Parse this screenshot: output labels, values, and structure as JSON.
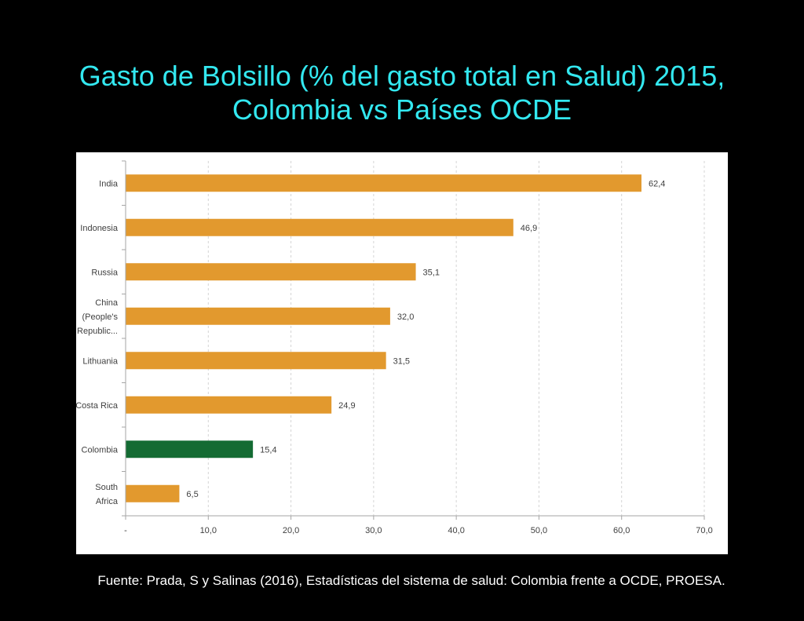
{
  "slide": {
    "background": "#000000",
    "title_color": "#33E8F0",
    "source": "Fuente: Prada, S y Salinas (2016), Estadísticas del sistema de salud: Colombia frente a OCDE, PROESA."
  },
  "chart_data": {
    "type": "bar",
    "orientation": "horizontal",
    "title": [
      "Gasto de Bolsillo (% del gasto total en Salud) 2015,",
      "Colombia vs Países OCDE"
    ],
    "categories": [
      [
        "India"
      ],
      [
        "Indonesia"
      ],
      [
        "Russia"
      ],
      [
        "China",
        "(People's",
        "Republic..."
      ],
      [
        "Lithuania"
      ],
      [
        "Costa Rica"
      ],
      [
        "Colombia"
      ],
      [
        "South",
        "Africa"
      ]
    ],
    "values": [
      62.4,
      46.9,
      35.1,
      32.0,
      31.5,
      24.9,
      15.4,
      6.5
    ],
    "value_labels": [
      "62,4",
      "46,9",
      "35,1",
      "32,0",
      "31,5",
      "24,9",
      "15,4",
      "6,5"
    ],
    "bar_colors": [
      "#E2992E",
      "#E2992E",
      "#E2992E",
      "#E2992E",
      "#E2992E",
      "#E2992E",
      "#146B33",
      "#E2992E"
    ],
    "xlim": [
      0,
      70
    ],
    "x_ticks": [
      0,
      10,
      20,
      30,
      40,
      50,
      60,
      70
    ],
    "x_tick_labels": [
      "-",
      "10,0",
      "20,0",
      "30,0",
      "40,0",
      "50,0",
      "60,0",
      "70,0"
    ],
    "grid": true,
    "grid_style": "vertical dashed"
  }
}
